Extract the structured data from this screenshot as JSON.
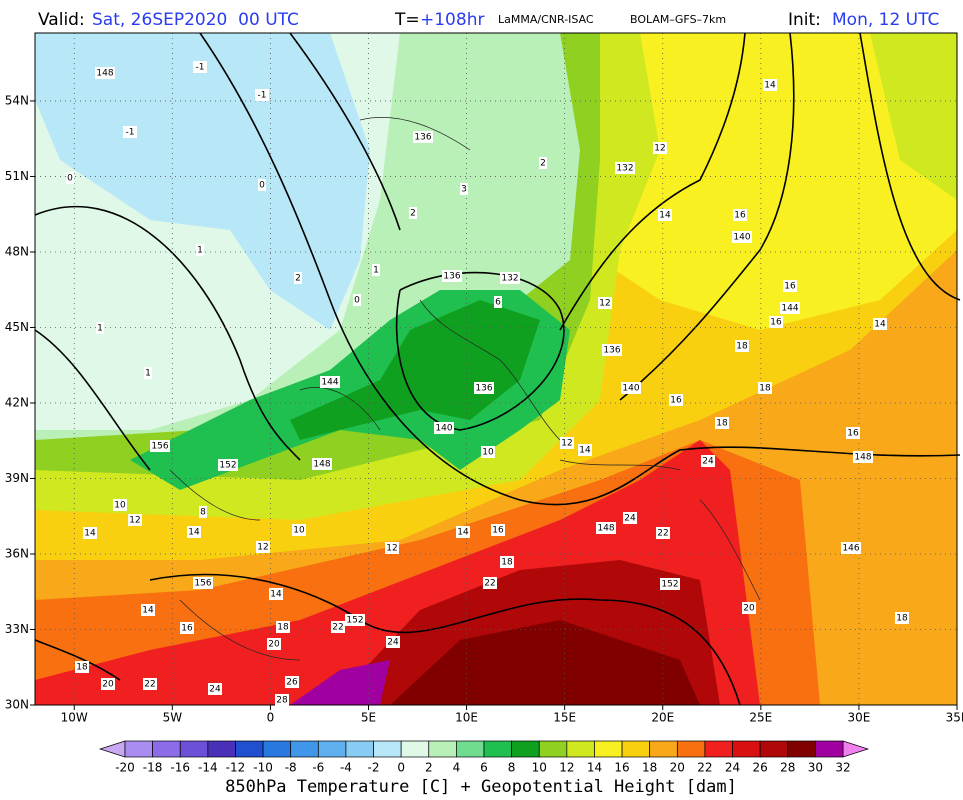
{
  "header": {
    "valid_label": "Valid:",
    "valid_time": "Sat, 26SEP2020  00 UTC",
    "step_label": "T=",
    "step": "+108hr",
    "institution": "LaMMA/CNR-ISAC",
    "model": "BOLAM–GFS–7km",
    "init_label": "Init:",
    "init_time": "Mon, 12 UTC"
  },
  "map": {
    "lon_range": [
      -12,
      35
    ],
    "lat_range": [
      30,
      56.7
    ],
    "lon_ticks": [
      {
        "value": -10,
        "label": "10W"
      },
      {
        "value": -5,
        "label": "5W"
      },
      0,
      {
        "value": 5,
        "label": "5E"
      },
      {
        "value": 10,
        "label": "10E"
      },
      {
        "value": 15,
        "label": "15E"
      },
      {
        "value": 20,
        "label": "20E"
      },
      {
        "value": 25,
        "label": "25E"
      },
      {
        "value": 30,
        "label": "30E"
      },
      {
        "value": 35,
        "label": "35E"
      }
    ],
    "lat_ticks": [
      {
        "value": 54,
        "label": "54N"
      },
      {
        "value": 51,
        "label": "51N"
      },
      {
        "value": 48,
        "label": "48N"
      },
      {
        "value": 45,
        "label": "45N"
      },
      {
        "value": 42,
        "label": "42N"
      },
      {
        "value": 39,
        "label": "39N"
      },
      {
        "value": 36,
        "label": "36N"
      },
      {
        "value": 33,
        "label": "33N"
      },
      {
        "value": 30,
        "label": "30N"
      }
    ],
    "contour_labels": [
      "148",
      "-1",
      "-1",
      "-1",
      "0",
      "0",
      "1",
      "1",
      "1",
      "1",
      "0",
      "2",
      "2",
      "3",
      "2",
      "136",
      "132",
      "12",
      "14",
      "14",
      "16",
      "140",
      "12",
      "136",
      "132",
      "6",
      "16",
      "144",
      "14",
      "16",
      "18",
      "136",
      "18",
      "140",
      "144",
      "136",
      "140",
      "16",
      "18",
      "16",
      "156",
      "152",
      "148",
      "148",
      "10",
      "12",
      "14",
      "24",
      "10",
      "12",
      "8",
      "14",
      "14",
      "10",
      "12",
      "12",
      "14",
      "16",
      "148",
      "24",
      "22",
      "146",
      "18",
      "156",
      "14",
      "22",
      "152",
      "14",
      "16",
      "18",
      "22",
      "152",
      "20",
      "18",
      "20",
      "24",
      "18",
      "20",
      "22",
      "24",
      "26",
      "28"
    ]
  },
  "colorbar": {
    "title": "850hPa Temperature [C] + Geopotential Height [dam]",
    "levels": [
      -20,
      -18,
      -16,
      -14,
      -12,
      -10,
      -8,
      -6,
      -4,
      -2,
      0,
      2,
      4,
      6,
      8,
      10,
      12,
      14,
      16,
      18,
      20,
      22,
      24,
      26,
      28,
      30,
      32
    ],
    "colors": [
      "#a98cf0",
      "#8c6ce8",
      "#6c50d8",
      "#4a30b8",
      "#2050d0",
      "#2878e0",
      "#4096e8",
      "#60b0f0",
      "#88ccf4",
      "#b8e8f8",
      "#e0f8e8",
      "#b8f0b8",
      "#70dc90",
      "#20c050",
      "#10a020",
      "#90d020",
      "#d0e820",
      "#f8f020",
      "#f8d010",
      "#f8a818",
      "#f87010",
      "#f02020",
      "#d81010",
      "#b00808",
      "#800000",
      "#a000a0"
    ],
    "below_color": "#c8a8f0",
    "above_color": "#f080f0"
  }
}
